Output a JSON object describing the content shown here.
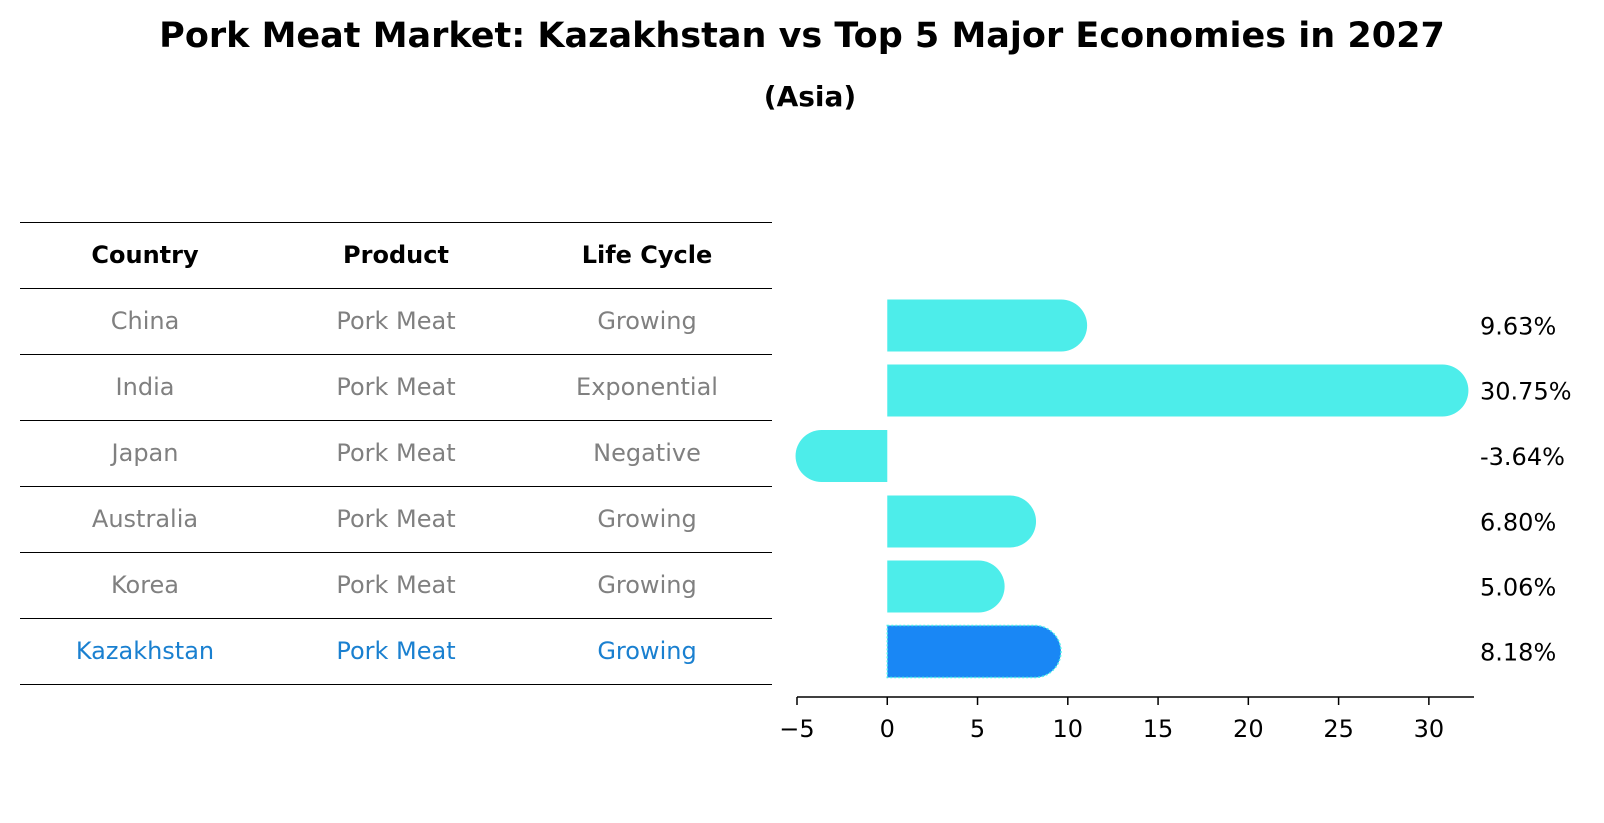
{
  "title": "Pork Meat Market: Kazakhstan vs Top 5 Major Economies in 2027",
  "subtitle": "(Asia)",
  "table": {
    "headers": [
      "Country",
      "Product",
      "Life Cycle"
    ],
    "rows": [
      {
        "country": "China",
        "product": "Pork Meat",
        "life_cycle": "Growing",
        "highlight": false
      },
      {
        "country": "India",
        "product": "Pork Meat",
        "life_cycle": "Exponential",
        "highlight": false
      },
      {
        "country": "Japan",
        "product": "Pork Meat",
        "life_cycle": "Negative",
        "highlight": false
      },
      {
        "country": "Australia",
        "product": "Pork Meat",
        "life_cycle": "Growing",
        "highlight": false
      },
      {
        "country": "Korea",
        "product": "Pork Meat",
        "life_cycle": "Growing",
        "highlight": false
      },
      {
        "country": "Kazakhstan",
        "product": "Pork Meat",
        "life_cycle": "Growing",
        "highlight": true
      }
    ]
  },
  "colors": {
    "bar": "#4DEDEA",
    "highlight_bar": "#1987F5",
    "normal_text": "#808080",
    "highlight_text": "#1A80D0"
  },
  "chart_data": {
    "type": "bar",
    "orientation": "horizontal",
    "categories": [
      "China",
      "India",
      "Japan",
      "Australia",
      "Korea",
      "Kazakhstan"
    ],
    "values": [
      9.63,
      30.75,
      -3.64,
      6.8,
      5.06,
      8.18
    ],
    "value_labels": [
      "9.63%",
      "30.75%",
      "-3.64%",
      "6.80%",
      "5.06%",
      "8.18%"
    ],
    "xlim": [
      -5,
      32.5
    ],
    "xticks": [
      -5,
      0,
      5,
      10,
      15,
      20,
      25,
      30
    ],
    "xtick_labels": [
      "−5",
      "0",
      "5",
      "10",
      "15",
      "20",
      "25",
      "30"
    ],
    "highlight_index": 5,
    "grid": false
  }
}
